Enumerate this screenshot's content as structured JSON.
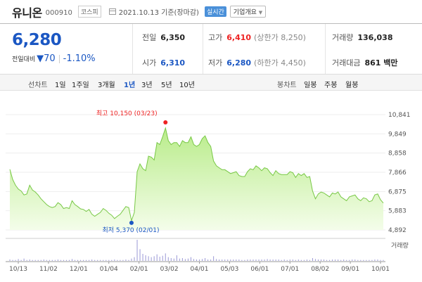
{
  "stock": {
    "name": "유니온",
    "code": "000910",
    "market": "코스피",
    "date": "2021.10.13 기준(장마감)",
    "realtime": "실시간",
    "overview": "기업개요"
  },
  "price": {
    "current": "6,280",
    "change_label": "전일대비",
    "change": "▼70",
    "rate": "-1.10%"
  },
  "info": {
    "prev_label": "전일",
    "prev": "6,350",
    "high_label": "고가",
    "high": "6,410",
    "upper_limit": "(상한가 8,250)",
    "volume_label": "거래량",
    "volume": "136,038",
    "open_label": "시가",
    "open": "6,310",
    "low_label": "저가",
    "low": "6,280",
    "lower_limit": "(하한가 4,450)",
    "amount_label": "거래대금",
    "amount": "861 백만"
  },
  "periods": {
    "line_label": "선차트",
    "line_items": [
      "1일",
      "1주일",
      "3개월",
      "1년",
      "3년",
      "5년",
      "10년"
    ],
    "selected": "1년",
    "candle_label": "봉차트",
    "candle_items": [
      "일봉",
      "주봉",
      "월봉"
    ]
  },
  "annotations": {
    "max": "최고 10,150 (03/23)",
    "min": "최저 5,370 (02/01)",
    "volume_label": "거래량"
  },
  "colors": {
    "accent": "#1b57c3",
    "up": "#e22222",
    "area_fill": "#c9f0a6",
    "line": "#78c846"
  },
  "chart_data": {
    "type": "area",
    "title": "",
    "ylabel": "",
    "y_ticks": [
      10841,
      9849,
      8858,
      7866,
      6875,
      5883,
      4892
    ],
    "ylim": [
      4892,
      10841
    ],
    "x_ticks": [
      "10/13",
      "11/02",
      "12/01",
      "01/04",
      "02/01",
      "03/02",
      "04/01",
      "05/03",
      "06/01",
      "07/01",
      "08/02",
      "09/01",
      "10/01"
    ],
    "series": [
      {
        "values": [
          8020,
          7500,
          7200,
          7000,
          6900,
          6700,
          6750,
          7200,
          6950,
          6850,
          6700,
          6500,
          6350,
          6200,
          6100,
          6050,
          6100,
          6300,
          6200,
          6000,
          6050,
          6000,
          6400,
          6200,
          6100,
          5980,
          5950,
          5850,
          5950,
          5700,
          5600,
          5700,
          5800,
          6000,
          5900,
          5750,
          5650,
          5480,
          5600,
          5700,
          5900,
          6100,
          6050,
          5370,
          5800,
          7900,
          8300,
          8050,
          7950,
          8700,
          8650,
          8500,
          9400,
          9300,
          9700,
          10150,
          9500,
          9300,
          9400,
          9400,
          9200,
          9500,
          9400,
          9400,
          9700,
          9300,
          9200,
          9300,
          9600,
          9750,
          9400,
          9200,
          8450,
          8200,
          8100,
          8000,
          8000,
          7900,
          7800,
          7850,
          7900,
          7700,
          7650,
          7650,
          7900,
          8050,
          8000,
          8200,
          8100,
          7950,
          8100,
          8050,
          7850,
          7700,
          7950,
          7800,
          7750,
          7750,
          7750,
          7900,
          7850,
          7600,
          7800,
          7700,
          7800,
          7600,
          7650,
          6900,
          6500,
          6750,
          6850,
          6800,
          6700,
          6600,
          6800,
          6750,
          6850,
          6600,
          6500,
          6400,
          6600,
          6650,
          6700,
          6500,
          6400,
          6550,
          6500,
          6350,
          6400,
          6700,
          6750,
          6450,
          6280
        ]
      }
    ],
    "volume": [
      3,
      2,
      2,
      4,
      2,
      5,
      2,
      3,
      2,
      2,
      2,
      2,
      3,
      2,
      2,
      2,
      2,
      3,
      2,
      2,
      2,
      2,
      4,
      2,
      2,
      2,
      2,
      2,
      2,
      3,
      2,
      2,
      2,
      2,
      2,
      2,
      2,
      3,
      2,
      2,
      2,
      3,
      2,
      5,
      8,
      45,
      25,
      15,
      12,
      10,
      8,
      10,
      14,
      9,
      11,
      16,
      8,
      6,
      5,
      12,
      5,
      6,
      4,
      5,
      8,
      4,
      3,
      3,
      4,
      6,
      3,
      3,
      10,
      4,
      3,
      3,
      3,
      3,
      3,
      3,
      3,
      3,
      2,
      2,
      3,
      3,
      3,
      3,
      3,
      3,
      3,
      4,
      3,
      3,
      3,
      3,
      2,
      3,
      2,
      3,
      3,
      2,
      3,
      2,
      2,
      3,
      2,
      6,
      4,
      3,
      3,
      3,
      2,
      2,
      3,
      3,
      3,
      2,
      3,
      2,
      2,
      3,
      3,
      2,
      2,
      2,
      2,
      2,
      2,
      3,
      3,
      2,
      2
    ],
    "volume_label": "거래량",
    "max": {
      "value": 10150,
      "date": "03/23"
    },
    "min": {
      "value": 5370,
      "date": "02/01"
    }
  }
}
